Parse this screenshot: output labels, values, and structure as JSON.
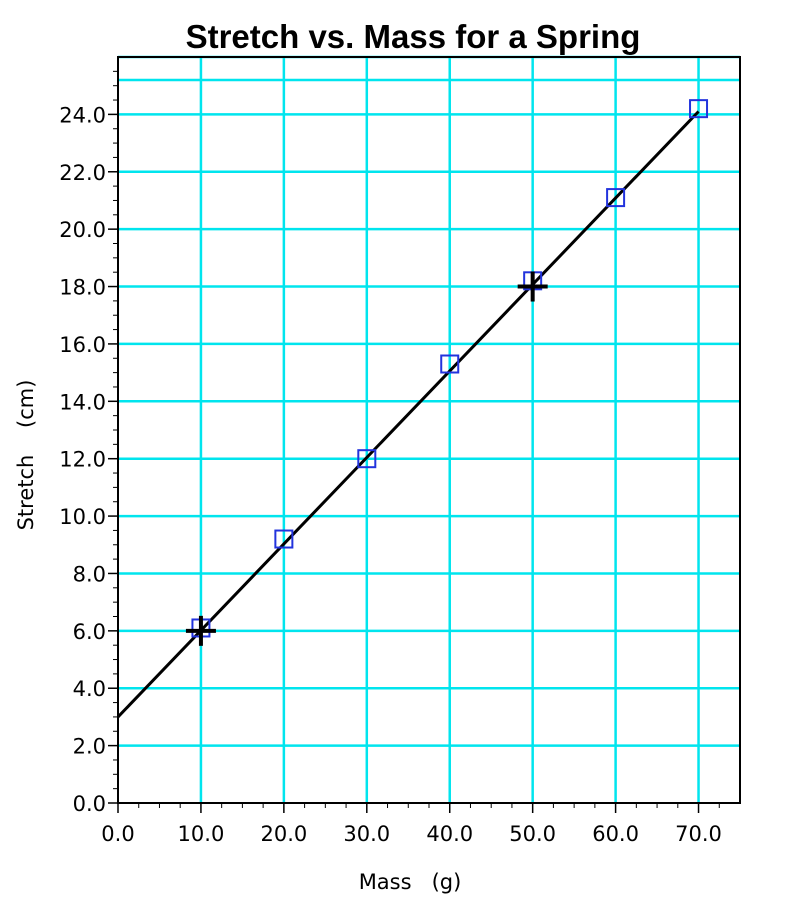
{
  "chart_data": {
    "type": "scatter",
    "title": "Stretch vs. Mass for a Spring",
    "xlabel": "Mass   (g)",
    "ylabel": "Stretch    (cm)",
    "xlim": [
      0,
      75
    ],
    "ylim": [
      0,
      26
    ],
    "xticks": [
      "0.0",
      "10.0",
      "20.0",
      "30.0",
      "40.0",
      "50.0",
      "60.0",
      "70.0"
    ],
    "yticks": [
      "0.0",
      "2.0",
      "4.0",
      "6.0",
      "8.0",
      "10.0",
      "12.0",
      "14.0",
      "16.0",
      "18.0",
      "20.0",
      "22.0",
      "24.0"
    ],
    "grid": true,
    "colors": {
      "grid": "#00e5ee",
      "points": "#2233dd",
      "line": "#000000"
    },
    "points": [
      {
        "x": 10,
        "y": 6.1
      },
      {
        "x": 20,
        "y": 9.2
      },
      {
        "x": 30,
        "y": 12.0
      },
      {
        "x": 40,
        "y": 15.3
      },
      {
        "x": 50,
        "y": 18.2
      },
      {
        "x": 60,
        "y": 21.1
      },
      {
        "x": 70,
        "y": 24.2
      }
    ],
    "fit_line": {
      "x": [
        0,
        70
      ],
      "y": [
        3.0,
        24.1
      ]
    },
    "markers": [
      {
        "x": 10,
        "y": 6.0
      },
      {
        "x": 50,
        "y": 18.0
      }
    ]
  }
}
